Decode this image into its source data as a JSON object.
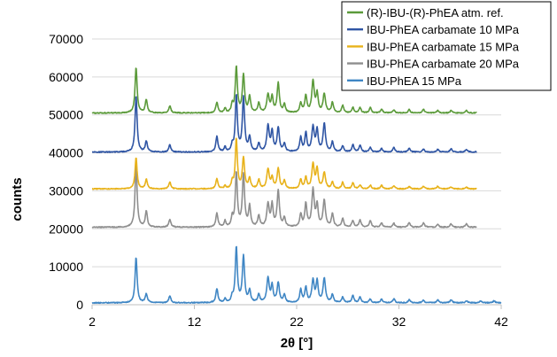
{
  "chart_data": {
    "type": "line",
    "xlabel": "2θ [°]",
    "ylabel": "counts",
    "xlim": [
      2,
      42
    ],
    "ylim": [
      0,
      70000
    ],
    "x_ticks": [
      "2",
      "12",
      "22",
      "32",
      "42"
    ],
    "y_ticks": [
      "0",
      "10000",
      "20000",
      "30000",
      "40000",
      "50000",
      "60000",
      "70000"
    ],
    "grid": "horizontal",
    "legend_position": "top-right",
    "peaks": [
      {
        "x": 6.3,
        "h": 1.0,
        "w": 0.12
      },
      {
        "x": 7.3,
        "h": 0.25,
        "w": 0.12
      },
      {
        "x": 9.6,
        "h": 0.16,
        "w": 0.12
      },
      {
        "x": 14.2,
        "h": 0.27,
        "w": 0.12
      },
      {
        "x": 15.0,
        "h": 0.09,
        "w": 0.1
      },
      {
        "x": 15.7,
        "h": 0.15,
        "w": 0.1
      },
      {
        "x": 16.1,
        "h": 1.15,
        "w": 0.12
      },
      {
        "x": 16.8,
        "h": 0.92,
        "w": 0.13
      },
      {
        "x": 17.4,
        "h": 0.3,
        "w": 0.12
      },
      {
        "x": 18.3,
        "h": 0.2,
        "w": 0.12
      },
      {
        "x": 19.2,
        "h": 0.48,
        "w": 0.14
      },
      {
        "x": 19.6,
        "h": 0.35,
        "w": 0.12
      },
      {
        "x": 20.2,
        "h": 0.55,
        "w": 0.13
      },
      {
        "x": 20.8,
        "h": 0.18,
        "w": 0.12
      },
      {
        "x": 22.4,
        "h": 0.25,
        "w": 0.12
      },
      {
        "x": 22.9,
        "h": 0.35,
        "w": 0.12
      },
      {
        "x": 23.6,
        "h": 0.6,
        "w": 0.14
      },
      {
        "x": 24.0,
        "h": 0.45,
        "w": 0.12
      },
      {
        "x": 24.7,
        "h": 0.48,
        "w": 0.14
      },
      {
        "x": 25.5,
        "h": 0.2,
        "w": 0.12
      },
      {
        "x": 26.5,
        "h": 0.15,
        "w": 0.12
      },
      {
        "x": 27.5,
        "h": 0.14,
        "w": 0.12
      },
      {
        "x": 28.2,
        "h": 0.12,
        "w": 0.12
      },
      {
        "x": 29.2,
        "h": 0.1,
        "w": 0.12
      },
      {
        "x": 30.3,
        "h": 0.08,
        "w": 0.12
      },
      {
        "x": 31.5,
        "h": 0.08,
        "w": 0.12
      },
      {
        "x": 33.0,
        "h": 0.07,
        "w": 0.12
      },
      {
        "x": 34.4,
        "h": 0.07,
        "w": 0.12
      },
      {
        "x": 35.8,
        "h": 0.06,
        "w": 0.12
      },
      {
        "x": 37.1,
        "h": 0.06,
        "w": 0.12
      },
      {
        "x": 38.6,
        "h": 0.05,
        "w": 0.12
      },
      {
        "x": 40.0,
        "h": 0.05,
        "w": 0.12
      },
      {
        "x": 41.3,
        "h": 0.04,
        "w": 0.12
      }
    ],
    "series": [
      {
        "name": "(R)-IBU-(R)-PhEA atm. ref.",
        "color": "#5b9a3a",
        "baseline": 50500,
        "scale": 12000,
        "x_end": 39.6
      },
      {
        "name": "IBU-PhEA carbamate 10 MPa",
        "color": "#2f55a4",
        "baseline": 40200,
        "scale": 13000,
        "x_end": 39.6
      },
      {
        "name": "IBU-PhEA carbamate 15 MPa",
        "color": "#e8b21a",
        "baseline": 30500,
        "scale": 10000,
        "x_end": 39.6
      },
      {
        "name": "IBU-PhEA carbamate 20 MPa",
        "color": "#8e8e8e",
        "baseline": 20400,
        "scale": 15000,
        "x_end": 39.6
      },
      {
        "name": "IBU-PhEA 15 MPa",
        "color": "#3f86c4",
        "baseline": 500,
        "scale": 11500,
        "x_end": 42
      }
    ]
  }
}
